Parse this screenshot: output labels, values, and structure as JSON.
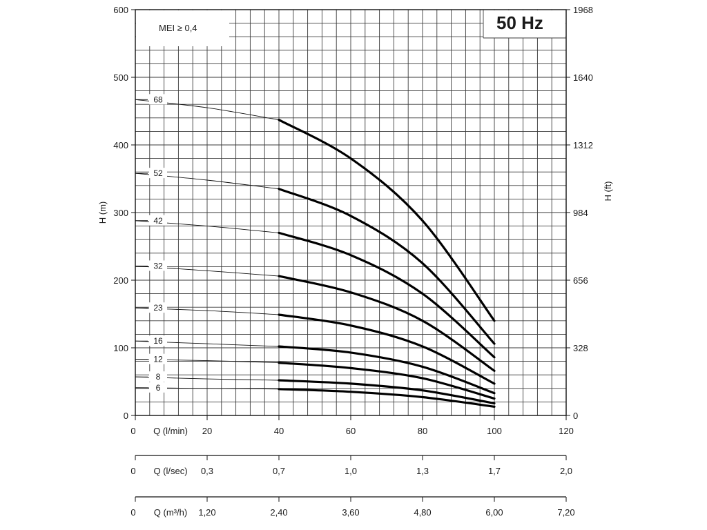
{
  "chart_data": {
    "type": "line",
    "badge": "50 Hz",
    "note": "MEI ≥ 0,4",
    "y_left": {
      "label": "H (m)",
      "range": [
        0,
        600
      ],
      "ticks": [
        "0",
        "100",
        "200",
        "300",
        "400",
        "500",
        "600"
      ]
    },
    "y_right": {
      "label": "H (ft)",
      "range": [
        0,
        1968
      ],
      "ticks": [
        "0",
        "328",
        "656",
        "984",
        "1312",
        "1640",
        "1968"
      ]
    },
    "x_axes": [
      {
        "label": "Q (l/min)",
        "ticks": [
          "0",
          "20",
          "40",
          "60",
          "80",
          "100",
          "120"
        ]
      },
      {
        "label": "Q (l/sec)",
        "ticks": [
          "0",
          "0,3",
          "0,7",
          "1,0",
          "1,3",
          "1,7",
          "2,0"
        ]
      },
      {
        "label": "Q (m³/h)",
        "ticks": [
          "0",
          "1,20",
          "2,40",
          "3,60",
          "4,80",
          "6,00",
          "7,20"
        ]
      }
    ],
    "x_range": [
      0,
      120
    ],
    "grid": true,
    "operating_range": [
      40,
      100
    ],
    "series": [
      {
        "name": "68",
        "x": [
          0,
          20,
          40,
          60,
          80,
          100
        ],
        "y": [
          467,
          455,
          437,
          380,
          288,
          140
        ]
      },
      {
        "name": "52",
        "x": [
          0,
          20,
          40,
          60,
          80,
          100
        ],
        "y": [
          358,
          348,
          335,
          295,
          225,
          106
        ]
      },
      {
        "name": "42",
        "x": [
          0,
          20,
          40,
          60,
          80,
          100
        ],
        "y": [
          288,
          280,
          270,
          237,
          180,
          86
        ]
      },
      {
        "name": "32",
        "x": [
          0,
          20,
          40,
          60,
          80,
          100
        ],
        "y": [
          221,
          214,
          206,
          182,
          140,
          66
        ]
      },
      {
        "name": "23",
        "x": [
          0,
          20,
          40,
          60,
          80,
          100
        ],
        "y": [
          159,
          155,
          149,
          133,
          102,
          47
        ]
      },
      {
        "name": "16",
        "x": [
          0,
          20,
          40,
          60,
          80,
          100
        ],
        "y": [
          110,
          106,
          102,
          93,
          72,
          33
        ]
      },
      {
        "name": "12",
        "x": [
          0,
          20,
          40,
          60,
          80,
          100
        ],
        "y": [
          83,
          81,
          78,
          70,
          55,
          25
        ]
      },
      {
        "name": "8",
        "x": [
          0,
          20,
          40,
          60,
          80,
          100
        ],
        "y": [
          57,
          54,
          52,
          47,
          37,
          18
        ]
      },
      {
        "name": "6",
        "x": [
          0,
          20,
          40,
          60,
          80,
          100
        ],
        "y": [
          41,
          40,
          39,
          35,
          27,
          13
        ]
      }
    ]
  }
}
